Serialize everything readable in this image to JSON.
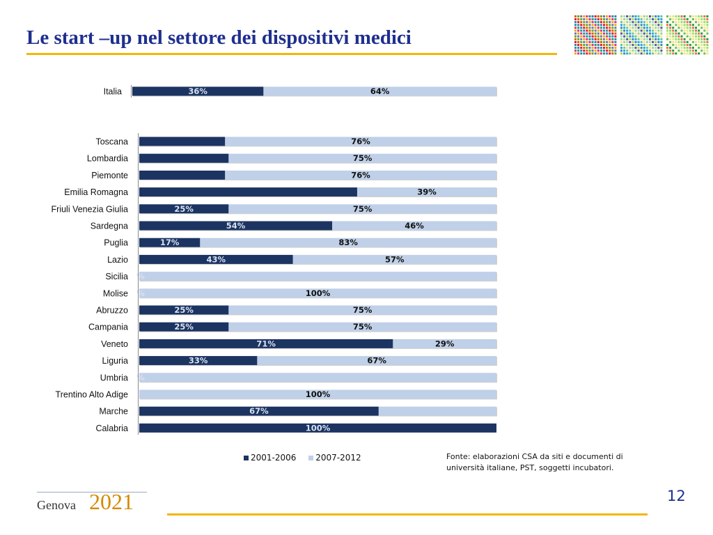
{
  "header": {
    "title": "Le start –up nel settore dei dispositivi medici"
  },
  "colors": {
    "series_2001": "#1c3461",
    "series_2007": "#bfd0e8",
    "accent": "#f2b705",
    "title": "#1f2f8f"
  },
  "chart_data": {
    "type": "bar",
    "orientation": "horizontal",
    "stacked": "100%",
    "categories": [
      "Italia",
      "Toscana",
      "Lombardia",
      "Piemonte",
      "Emilia Romagna",
      "Friuli Venezia Giulia",
      "Sardegna",
      "Puglia",
      "Lazio",
      "Sicilia",
      "Molise",
      "Abruzzo",
      "Campania",
      "Veneto",
      "Liguria",
      "Umbria",
      "Trentino Alto Adige",
      "Marche",
      "Calabria"
    ],
    "series": [
      {
        "name": "2001-2006",
        "values": [
          36,
          24,
          25,
          24,
          61,
          25,
          54,
          17,
          43,
          0,
          0,
          25,
          25,
          71,
          33,
          0,
          0,
          67,
          100
        ],
        "labels": [
          "36%",
          "",
          "",
          "",
          "",
          "25%",
          "54%",
          "17%",
          "43%",
          "%",
          "%",
          "25%",
          "25%",
          "71%",
          "33%",
          "%",
          "",
          "67%",
          "100%"
        ]
      },
      {
        "name": "2007-2012",
        "values": [
          64,
          76,
          75,
          76,
          39,
          75,
          46,
          83,
          57,
          100,
          100,
          75,
          75,
          29,
          67,
          100,
          100,
          33,
          0
        ],
        "labels": [
          "64%",
          "76%",
          "75%",
          "76%",
          "39%",
          "75%",
          "46%",
          "83%",
          "57%",
          "",
          "100%",
          "75%",
          "75%",
          "29%",
          "67%",
          "",
          "100%",
          "",
          ""
        ]
      }
    ],
    "xlim": [
      0,
      100
    ],
    "legend_position": "bottom"
  },
  "source": {
    "lines": [
      "Fonte: elaborazioni CSA da siti e documenti di",
      "università italiane, PST, soggetti incubatori."
    ]
  },
  "footer": {
    "logo_word": "Genova",
    "logo_year": "2021",
    "page_number": "12"
  }
}
